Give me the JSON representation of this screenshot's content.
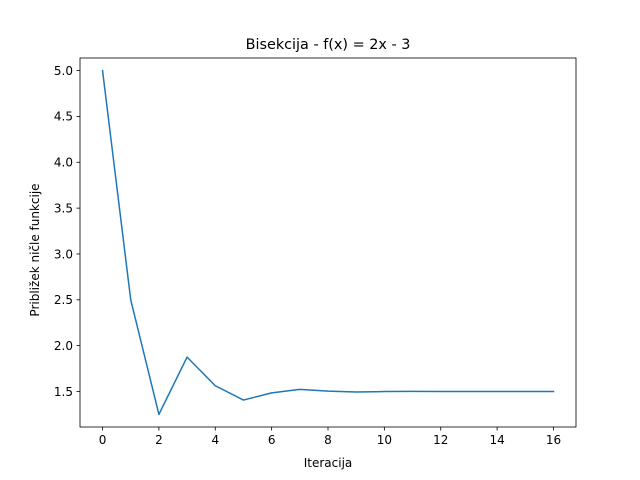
{
  "chart_data": {
    "type": "line",
    "title": "Bisekcija - f(x) = 2x - 3",
    "xlabel": "Iteracija",
    "ylabel": "Približek ničle funkcije",
    "xlim": [
      -0.8,
      16.8
    ],
    "ylim": [
      1.1125,
      5.1375
    ],
    "xticks": [
      0,
      2,
      4,
      6,
      8,
      10,
      12,
      14,
      16
    ],
    "yticks": [
      1.5,
      2.0,
      2.5,
      3.0,
      3.5,
      4.0,
      4.5,
      5.0
    ],
    "xtick_labels": [
      "0",
      "2",
      "4",
      "6",
      "8",
      "10",
      "12",
      "14",
      "16"
    ],
    "ytick_labels": [
      "1.5",
      "2.0",
      "2.5",
      "3.0",
      "3.5",
      "4.0",
      "4.5",
      "5.0"
    ],
    "grid": false,
    "series": [
      {
        "color": "#1f77b4",
        "x": [
          0,
          1,
          2,
          3,
          4,
          5,
          6,
          7,
          8,
          9,
          10,
          11,
          12,
          13,
          14,
          15,
          16
        ],
        "values": [
          5.0,
          2.5,
          1.25,
          1.875,
          1.5625,
          1.40625,
          1.484375,
          1.5234375,
          1.50390625,
          1.494140625,
          1.4990234375,
          1.50146484375,
          1.500244140625,
          1.4996337890625,
          1.49993896484375,
          1.500091552734375,
          1.5000152587890625
        ]
      }
    ]
  }
}
